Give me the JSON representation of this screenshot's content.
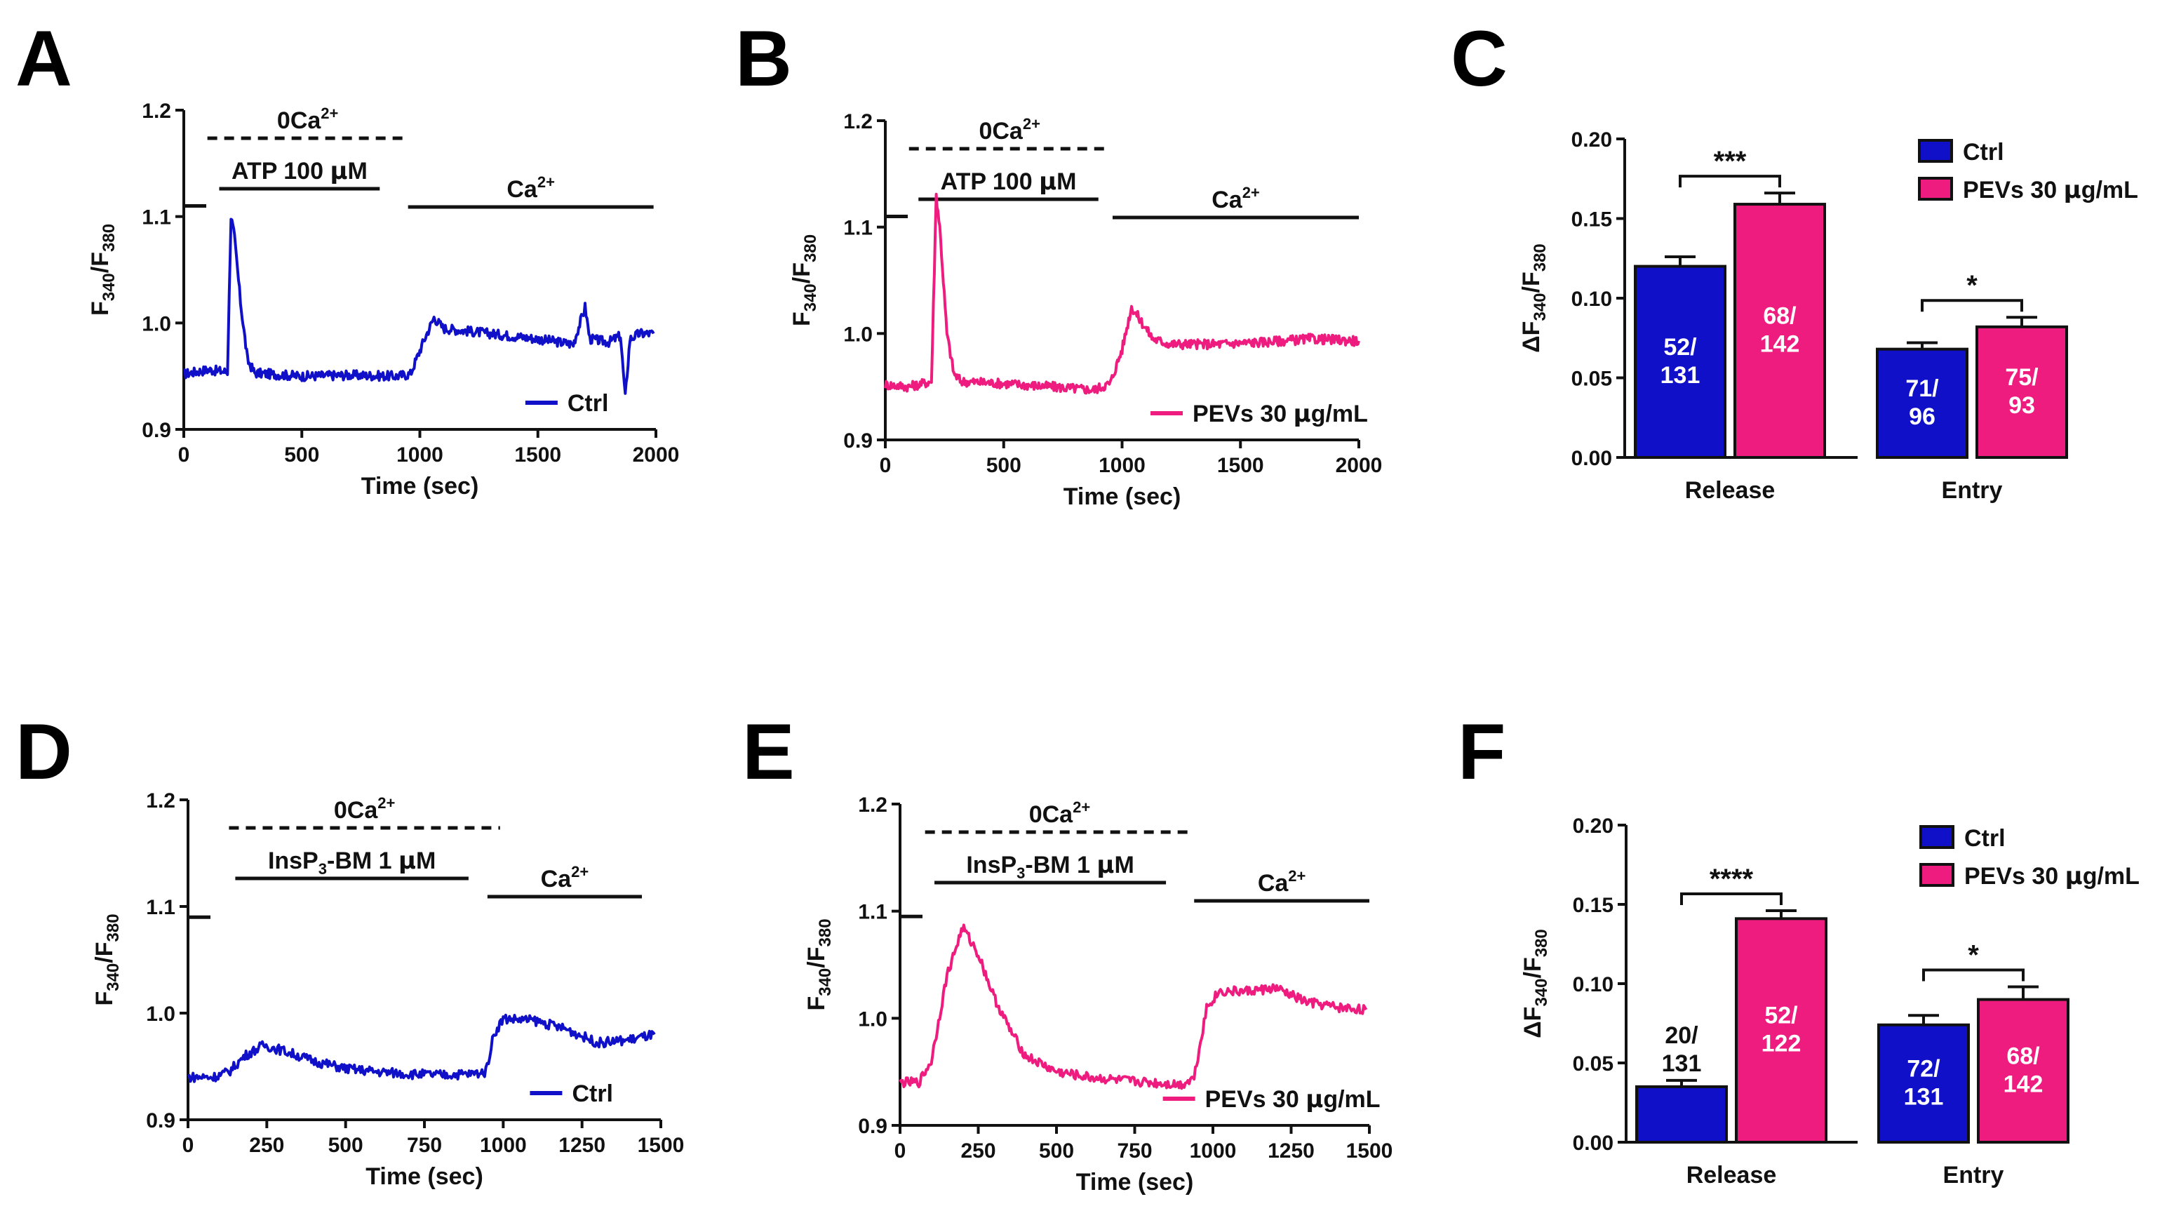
{
  "colors": {
    "ctrl": "#1010c8",
    "pevs": "#ee1c7e",
    "axis": "#111111"
  },
  "chart_data": [
    {
      "panel": "A",
      "type": "line",
      "xlabel": "Time (sec)",
      "ylabel_main": "F",
      "ylabel_sub1": "340",
      "ylabel_sub2": "380",
      "xlim": [
        0,
        2000
      ],
      "ylim": [
        0.9,
        1.2
      ],
      "xticks": [
        0,
        500,
        1000,
        1500,
        2000
      ],
      "yticks": [
        0.9,
        1.0,
        1.1,
        1.2
      ],
      "xtick_labels": [
        "0",
        "500",
        "1000",
        "1500",
        "2000"
      ],
      "ytick_labels": [
        "0.9",
        "1.0",
        "1.1",
        "1.2"
      ],
      "series_name": "Ctrl",
      "color": "#1010c8",
      "ca0_main": "0Ca",
      "ca0_sup": "2+",
      "ca_main": "Ca",
      "ca_sup": "2+",
      "stim_main": "ATP 100 ",
      "stim_mu": "μ",
      "stim_unit": "M",
      "stim_sub": "",
      "stim_tail": "",
      "ref_y": 1.11,
      "ca0_range": [
        100,
        950
      ],
      "stim_range": [
        150,
        830
      ],
      "ca_range": [
        950,
        1990
      ],
      "points": [
        [
          0,
          0.952
        ],
        [
          100,
          0.956
        ],
        [
          185,
          0.954
        ],
        [
          200,
          1.1
        ],
        [
          215,
          1.08
        ],
        [
          240,
          1.02
        ],
        [
          270,
          0.965
        ],
        [
          300,
          0.953
        ],
        [
          500,
          0.95
        ],
        [
          700,
          0.951
        ],
        [
          900,
          0.95
        ],
        [
          960,
          0.952
        ],
        [
          1020,
          0.985
        ],
        [
          1060,
          1.005
        ],
        [
          1100,
          0.995
        ],
        [
          1300,
          0.99
        ],
        [
          1500,
          0.985
        ],
        [
          1650,
          0.98
        ],
        [
          1700,
          1.015
        ],
        [
          1720,
          0.985
        ],
        [
          1800,
          0.982
        ],
        [
          1850,
          0.988
        ],
        [
          1870,
          0.93
        ],
        [
          1890,
          0.985
        ],
        [
          1930,
          0.99
        ],
        [
          1990,
          0.99
        ]
      ]
    },
    {
      "panel": "B",
      "type": "line",
      "xlabel": "Time (sec)",
      "ylabel_main": "F",
      "ylabel_sub1": "340",
      "ylabel_sub2": "380",
      "xlim": [
        0,
        2000
      ],
      "ylim": [
        0.9,
        1.2
      ],
      "xticks": [
        0,
        500,
        1000,
        1500,
        2000
      ],
      "yticks": [
        0.9,
        1.0,
        1.1,
        1.2
      ],
      "xtick_labels": [
        "0",
        "500",
        "1000",
        "1500",
        "2000"
      ],
      "ytick_labels": [
        "0.9",
        "1.0",
        "1.1",
        "1.2"
      ],
      "series_name": "PEVs 30 ",
      "series_mu": "μ",
      "series_tail": "g/mL",
      "color": "#ee1c7e",
      "ca0_main": "0Ca",
      "ca0_sup": "2+",
      "ca_main": "Ca",
      "ca_sup": "2+",
      "stim_main": "ATP 100 ",
      "stim_mu": "μ",
      "stim_unit": "M",
      "stim_sub": "",
      "stim_tail": "",
      "ref_y": 1.11,
      "ca0_range": [
        100,
        950
      ],
      "stim_range": [
        140,
        900
      ],
      "ca_range": [
        960,
        2000
      ],
      "points": [
        [
          0,
          0.952
        ],
        [
          100,
          0.95
        ],
        [
          195,
          0.955
        ],
        [
          215,
          1.13
        ],
        [
          230,
          1.1
        ],
        [
          260,
          1.0
        ],
        [
          290,
          0.962
        ],
        [
          320,
          0.955
        ],
        [
          500,
          0.953
        ],
        [
          700,
          0.95
        ],
        [
          880,
          0.947
        ],
        [
          950,
          0.953
        ],
        [
          1000,
          0.985
        ],
        [
          1040,
          1.025
        ],
        [
          1070,
          1.015
        ],
        [
          1130,
          0.995
        ],
        [
          1200,
          0.99
        ],
        [
          1400,
          0.99
        ],
        [
          1600,
          0.992
        ],
        [
          1800,
          0.995
        ],
        [
          2000,
          0.993
        ]
      ]
    },
    {
      "panel": "C",
      "type": "bar",
      "ylabel_main": "ΔF",
      "ylabel_sub1": "340",
      "ylabel_sub2": "380",
      "ylim": [
        0,
        0.2
      ],
      "yticks": [
        0.0,
        0.05,
        0.1,
        0.15,
        0.2
      ],
      "ytick_labels": [
        "0.00",
        "0.05",
        "0.10",
        "0.15",
        "0.20"
      ],
      "categories": [
        "Release",
        "Entry"
      ],
      "series": [
        {
          "name": "Ctrl",
          "color": "#1010c8",
          "values": [
            0.12,
            0.068
          ],
          "errors": [
            0.006,
            0.004
          ],
          "n_labels": [
            [
              "52/",
              "131"
            ],
            [
              "71/",
              "96"
            ]
          ]
        },
        {
          "name": "PEVs 30 μg/mL",
          "name_main": "PEVs 30 ",
          "name_mu": "μ",
          "name_tail": "g/mL",
          "color": "#ee1c7e",
          "values": [
            0.159,
            0.082
          ],
          "errors": [
            0.007,
            0.006
          ],
          "n_labels": [
            [
              "68/",
              "142"
            ],
            [
              "75/",
              "93"
            ]
          ]
        }
      ],
      "significance": [
        "***",
        "*"
      ],
      "label_in_bar": [
        true,
        true,
        true,
        true
      ]
    },
    {
      "panel": "D",
      "type": "line",
      "xlabel": "Time (sec)",
      "ylabel_main": "F",
      "ylabel_sub1": "340",
      "ylabel_sub2": "380",
      "xlim": [
        0,
        1500
      ],
      "ylim": [
        0.9,
        1.2
      ],
      "xticks": [
        0,
        250,
        500,
        750,
        1000,
        1250,
        1500
      ],
      "yticks": [
        0.9,
        1.0,
        1.1,
        1.2
      ],
      "xtick_labels": [
        "0",
        "250",
        "500",
        "750",
        "1000",
        "1250",
        "1500"
      ],
      "ytick_labels": [
        "0.9",
        "1.0",
        "1.1",
        "1.2"
      ],
      "series_name": "Ctrl",
      "color": "#1010c8",
      "ca0_main": "0Ca",
      "ca0_sup": "2+",
      "ca_main": "Ca",
      "ca_sup": "2+",
      "stim_main": "InsP",
      "stim_sub": "3",
      "stim_tail": "-BM 1 ",
      "stim_mu": "μ",
      "stim_unit": "M",
      "ref_y": 1.09,
      "ca0_range": [
        130,
        990
      ],
      "stim_range": [
        150,
        890
      ],
      "ca_range": [
        950,
        1440
      ],
      "points": [
        [
          0,
          0.94
        ],
        [
          80,
          0.94
        ],
        [
          130,
          0.945
        ],
        [
          180,
          0.96
        ],
        [
          240,
          0.97
        ],
        [
          300,
          0.965
        ],
        [
          400,
          0.955
        ],
        [
          500,
          0.948
        ],
        [
          600,
          0.945
        ],
        [
          700,
          0.943
        ],
        [
          800,
          0.942
        ],
        [
          900,
          0.943
        ],
        [
          945,
          0.945
        ],
        [
          970,
          0.98
        ],
        [
          1000,
          0.995
        ],
        [
          1100,
          0.993
        ],
        [
          1200,
          0.985
        ],
        [
          1300,
          0.972
        ],
        [
          1400,
          0.975
        ],
        [
          1480,
          0.98
        ]
      ]
    },
    {
      "panel": "E",
      "type": "line",
      "xlabel": "Time (sec)",
      "ylabel_main": "F",
      "ylabel_sub1": "340",
      "ylabel_sub2": "380",
      "xlim": [
        0,
        1500
      ],
      "ylim": [
        0.9,
        1.2
      ],
      "xticks": [
        0,
        250,
        500,
        750,
        1000,
        1250,
        1500
      ],
      "yticks": [
        0.9,
        1.0,
        1.1,
        1.2
      ],
      "xtick_labels": [
        "0",
        "250",
        "500",
        "750",
        "1000",
        "1250",
        "1500"
      ],
      "ytick_labels": [
        "0.9",
        "1.0",
        "1.1",
        "1.2"
      ],
      "series_name": "PEVs 30 ",
      "series_mu": "μ",
      "series_tail": "g/mL",
      "color": "#ee1c7e",
      "ca0_main": "0Ca",
      "ca0_sup": "2+",
      "ca_main": "Ca",
      "ca_sup": "2+",
      "stim_main": "InsP",
      "stim_sub": "3",
      "stim_tail": "-BM 1 ",
      "stim_mu": "μ",
      "stim_unit": "M",
      "ref_y": 1.095,
      "ca0_range": [
        80,
        940
      ],
      "stim_range": [
        110,
        850
      ],
      "ca_range": [
        940,
        1500
      ],
      "points": [
        [
          0,
          0.94
        ],
        [
          60,
          0.94
        ],
        [
          100,
          0.96
        ],
        [
          150,
          1.04
        ],
        [
          200,
          1.085
        ],
        [
          250,
          1.06
        ],
        [
          300,
          1.02
        ],
        [
          350,
          0.99
        ],
        [
          400,
          0.965
        ],
        [
          500,
          0.95
        ],
        [
          600,
          0.945
        ],
        [
          700,
          0.942
        ],
        [
          800,
          0.94
        ],
        [
          900,
          0.938
        ],
        [
          940,
          0.945
        ],
        [
          980,
          1.01
        ],
        [
          1020,
          1.025
        ],
        [
          1100,
          1.025
        ],
        [
          1200,
          1.028
        ],
        [
          1300,
          1.015
        ],
        [
          1400,
          1.01
        ],
        [
          1490,
          1.008
        ]
      ]
    },
    {
      "panel": "F",
      "type": "bar",
      "ylabel_main": "ΔF",
      "ylabel_sub1": "340",
      "ylabel_sub2": "380",
      "ylim": [
        0,
        0.2
      ],
      "yticks": [
        0.0,
        0.05,
        0.1,
        0.15,
        0.2
      ],
      "ytick_labels": [
        "0.00",
        "0.05",
        "0.10",
        "0.15",
        "0.20"
      ],
      "categories": [
        "Release",
        "Entry"
      ],
      "series": [
        {
          "name": "Ctrl",
          "color": "#1010c8",
          "values": [
            0.035,
            0.074
          ],
          "errors": [
            0.004,
            0.006
          ],
          "n_labels": [
            [
              "20/",
              "131"
            ],
            [
              "72/",
              "131"
            ]
          ]
        },
        {
          "name": "PEVs 30 μg/mL",
          "name_main": "PEVs 30 ",
          "name_mu": "μ",
          "name_tail": "g/mL",
          "color": "#ee1c7e",
          "values": [
            0.141,
            0.09
          ],
          "errors": [
            0.005,
            0.008
          ],
          "n_labels": [
            [
              "52/",
              "122"
            ],
            [
              "68/",
              "142"
            ]
          ]
        }
      ],
      "significance": [
        "****",
        "*"
      ],
      "label_in_bar": [
        false,
        true,
        true,
        true
      ]
    }
  ]
}
